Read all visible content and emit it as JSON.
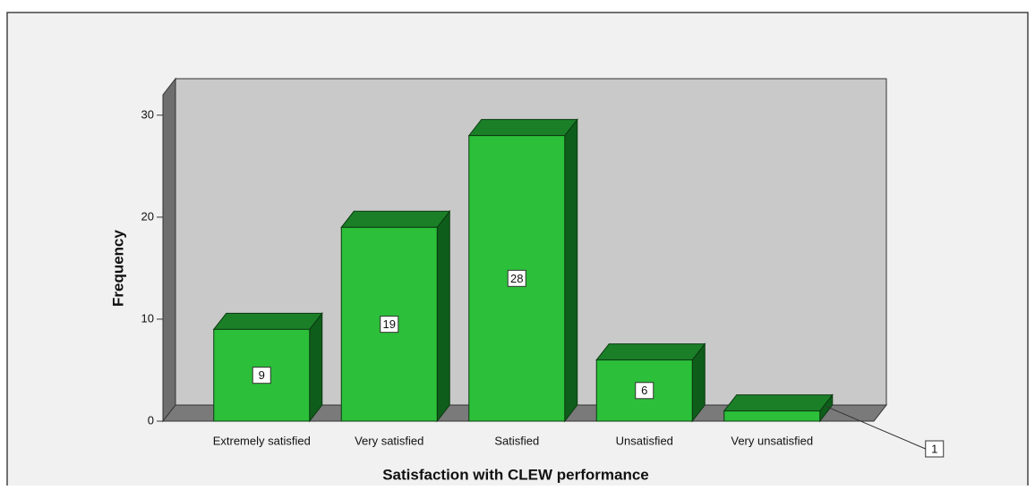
{
  "chart_data": {
    "type": "bar3d",
    "x_label": "Satisfaction with CLEW performance",
    "y_label": "Frequency",
    "categories": [
      "Extremely satisfied",
      "Very satisfied",
      "Satisfied",
      "Unsatisfied",
      "Very unsatisfied"
    ],
    "values": [
      9,
      19,
      28,
      6,
      1
    ],
    "color": "#2cbf3a",
    "ylim": [
      0,
      32
    ],
    "yticks": [
      0,
      10,
      20,
      30
    ]
  }
}
